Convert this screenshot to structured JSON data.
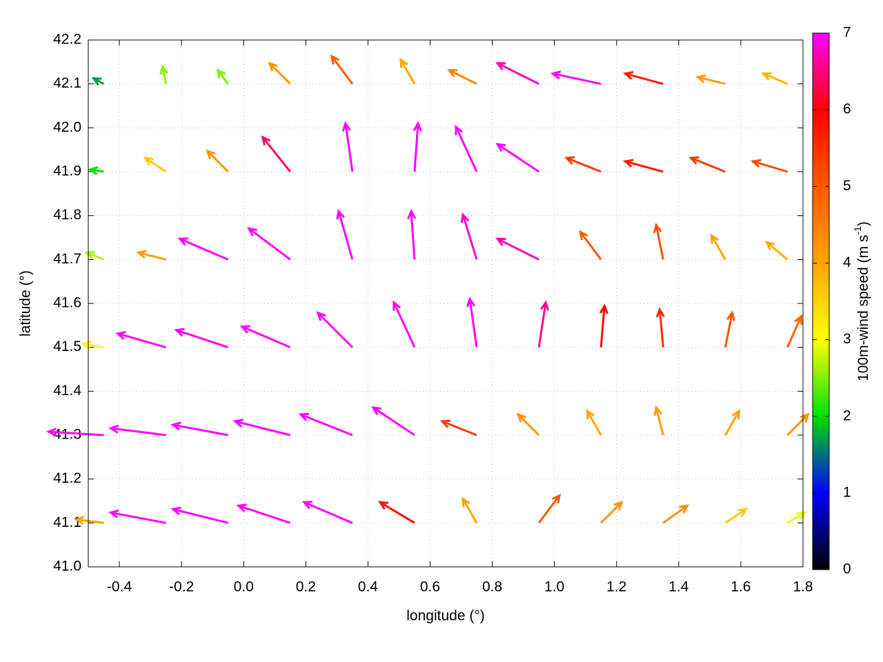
{
  "chart_data": {
    "type": "quiver",
    "x_label": "longitude (°)",
    "y_label": "latitude (°)",
    "xlim": [
      -0.5,
      1.8
    ],
    "ylim": [
      41.0,
      42.2
    ],
    "xticks": [
      -0.4,
      -0.2,
      {
        "value": 0,
        "label": "0.0"
      },
      0.2,
      0.4,
      0.6,
      0.8,
      {
        "value": 1,
        "label": "1.0"
      },
      1.2,
      1.4,
      1.6,
      1.8
    ],
    "yticks": [
      {
        "value": 41,
        "label": "41.0"
      },
      41.1,
      41.2,
      41.3,
      41.4,
      41.5,
      41.6,
      41.7,
      41.8,
      41.9,
      {
        "value": 42,
        "label": "42.0"
      },
      42.1,
      42.2
    ],
    "grid": true,
    "colorbar": {
      "label": "100m-wind speed (m s",
      "label_sup": "-1",
      "label_end": ")",
      "lim": [
        0,
        7
      ],
      "ticks": [
        0,
        1,
        2,
        3,
        4,
        5,
        6,
        7
      ],
      "colors": [
        "#000000",
        "#0000ff",
        "#00e000",
        "#ffff00",
        "#ffa500",
        "#ff5a00",
        "#ff0000",
        "#ff00ff"
      ]
    },
    "vectors": {
      "x": [
        -0.45,
        -0.25,
        -0.05,
        0.15,
        0.35,
        0.55,
        0.75,
        0.95,
        1.15,
        1.35,
        1.55,
        1.75,
        -0.45,
        -0.25,
        -0.05,
        0.15,
        0.35,
        0.55,
        0.75,
        0.95,
        1.15,
        1.35,
        1.55,
        1.75,
        -0.45,
        -0.25,
        -0.05,
        0.15,
        0.35,
        0.55,
        0.75,
        0.95,
        1.15,
        1.35,
        1.55,
        1.75,
        -0.45,
        -0.25,
        -0.05,
        0.15,
        0.35,
        0.55,
        0.75,
        0.95,
        1.15,
        1.35,
        1.55,
        1.75,
        -0.45,
        -0.25,
        -0.05,
        0.15,
        0.35,
        0.55,
        0.75,
        0.95,
        1.15,
        1.35,
        1.55,
        1.75,
        -0.45,
        -0.25,
        -0.05,
        0.15,
        0.35,
        0.55,
        0.75,
        0.95,
        1.15,
        1.35,
        1.55,
        1.75
      ],
      "y": [
        42.1,
        42.1,
        42.1,
        42.1,
        42.1,
        42.1,
        42.1,
        42.1,
        42.1,
        42.1,
        42.1,
        42.1,
        41.9,
        41.9,
        41.9,
        41.9,
        41.9,
        41.9,
        41.9,
        41.9,
        41.9,
        41.9,
        41.9,
        41.9,
        41.7,
        41.7,
        41.7,
        41.7,
        41.7,
        41.7,
        41.7,
        41.7,
        41.7,
        41.7,
        41.7,
        41.7,
        41.5,
        41.5,
        41.5,
        41.5,
        41.5,
        41.5,
        41.5,
        41.5,
        41.5,
        41.5,
        41.5,
        41.5,
        41.3,
        41.3,
        41.3,
        41.3,
        41.3,
        41.3,
        41.3,
        41.3,
        41.3,
        41.3,
        41.3,
        41.3,
        41.1,
        41.1,
        41.1,
        41.1,
        41.1,
        41.1,
        41.1,
        41.1,
        41.1,
        41.1,
        41.1,
        41.1
      ],
      "u": [
        -1.5,
        -0.5,
        -1.5,
        -3,
        -3,
        -2,
        -4,
        -6,
        -7,
        -5.5,
        -4,
        -3.5,
        -2,
        -3,
        -3,
        -4,
        -1,
        0.5,
        -3,
        -6,
        -5,
        -5.5,
        -5,
        -5,
        -2.5,
        -4,
        -7,
        -6,
        -2,
        -0.5,
        -2,
        -6,
        -3,
        -1,
        -2,
        -3,
        -3,
        -7,
        -7.5,
        -7,
        -5,
        -3,
        -1,
        1,
        0.5,
        -0.5,
        1,
        2,
        -8,
        -8,
        -8,
        -8,
        -7.5,
        -6,
        -5,
        -3,
        -2,
        -1,
        2,
        3,
        -4,
        -8,
        -8,
        -7.5,
        -7,
        -5,
        -2,
        3,
        3,
        3.5,
        3,
        2.5
      ],
      "v": [
        0.8,
        2.5,
        2,
        3,
        4,
        3.5,
        2,
        3,
        1.5,
        1.5,
        1,
        1.5,
        0.3,
        2,
        3,
        5,
        7,
        7,
        6.5,
        4,
        2,
        1.5,
        2,
        1.5,
        1,
        1,
        3,
        4.5,
        7,
        7,
        6.5,
        3,
        4,
        5,
        3.5,
        2.5,
        0.5,
        2,
        2.5,
        3,
        5,
        6.5,
        7,
        6.5,
        6,
        5.5,
        5,
        4.5,
        0.5,
        1,
        1.5,
        2,
        3,
        4,
        2,
        3,
        3.5,
        4,
        3.5,
        3,
        0.5,
        1.5,
        2,
        2.5,
        3,
        3,
        3.5,
        4,
        3,
        2.5,
        2,
        1.5
      ]
    }
  }
}
